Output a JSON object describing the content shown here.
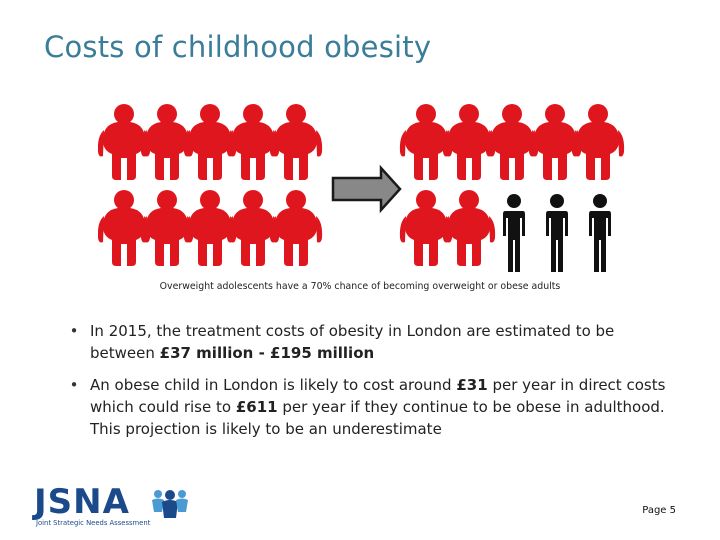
{
  "slide": {
    "title": "Costs of childhood obesity",
    "caption": "Overweight adolescents have a 70% chance of becoming  overweight or obese adults",
    "bullets": [
      {
        "segments": [
          {
            "text": "In 2015, the treatment costs of obesity in London are estimated to be between ",
            "bold": false
          },
          {
            "text": "£37 million - £195 million",
            "bold": true
          }
        ]
      },
      {
        "segments": [
          {
            "text": "An obese child in London is likely to cost around ",
            "bold": false
          },
          {
            "text": "£31",
            "bold": true
          },
          {
            "text": " per year in direct costs which could rise to ",
            "bold": false
          },
          {
            "text": "£611",
            "bold": true
          },
          {
            "text": " per year if they continue to be obese in adulthood. This projection is likely to be an underestimate",
            "bold": false
          }
        ]
      }
    ],
    "page_label": "Page 5"
  },
  "graphic": {
    "icons": [
      "overweight-person-icon",
      "normal-weight-person-icon",
      "right-arrow-icon"
    ],
    "before": {
      "overweight": 10,
      "normal": 0
    },
    "after": {
      "overweight": 7,
      "normal": 3
    },
    "colors": {
      "overweight": "#e0161e",
      "normal": "#111111",
      "arrow_fill": "#888888",
      "arrow_stroke": "#1a1a1a"
    }
  },
  "logo": {
    "word": "JSNA",
    "tagline": "Joint Strategic Needs Assessment",
    "color": "#1b4a8a",
    "accent": "#4a9ad4",
    "icon": "people-group-icon"
  }
}
